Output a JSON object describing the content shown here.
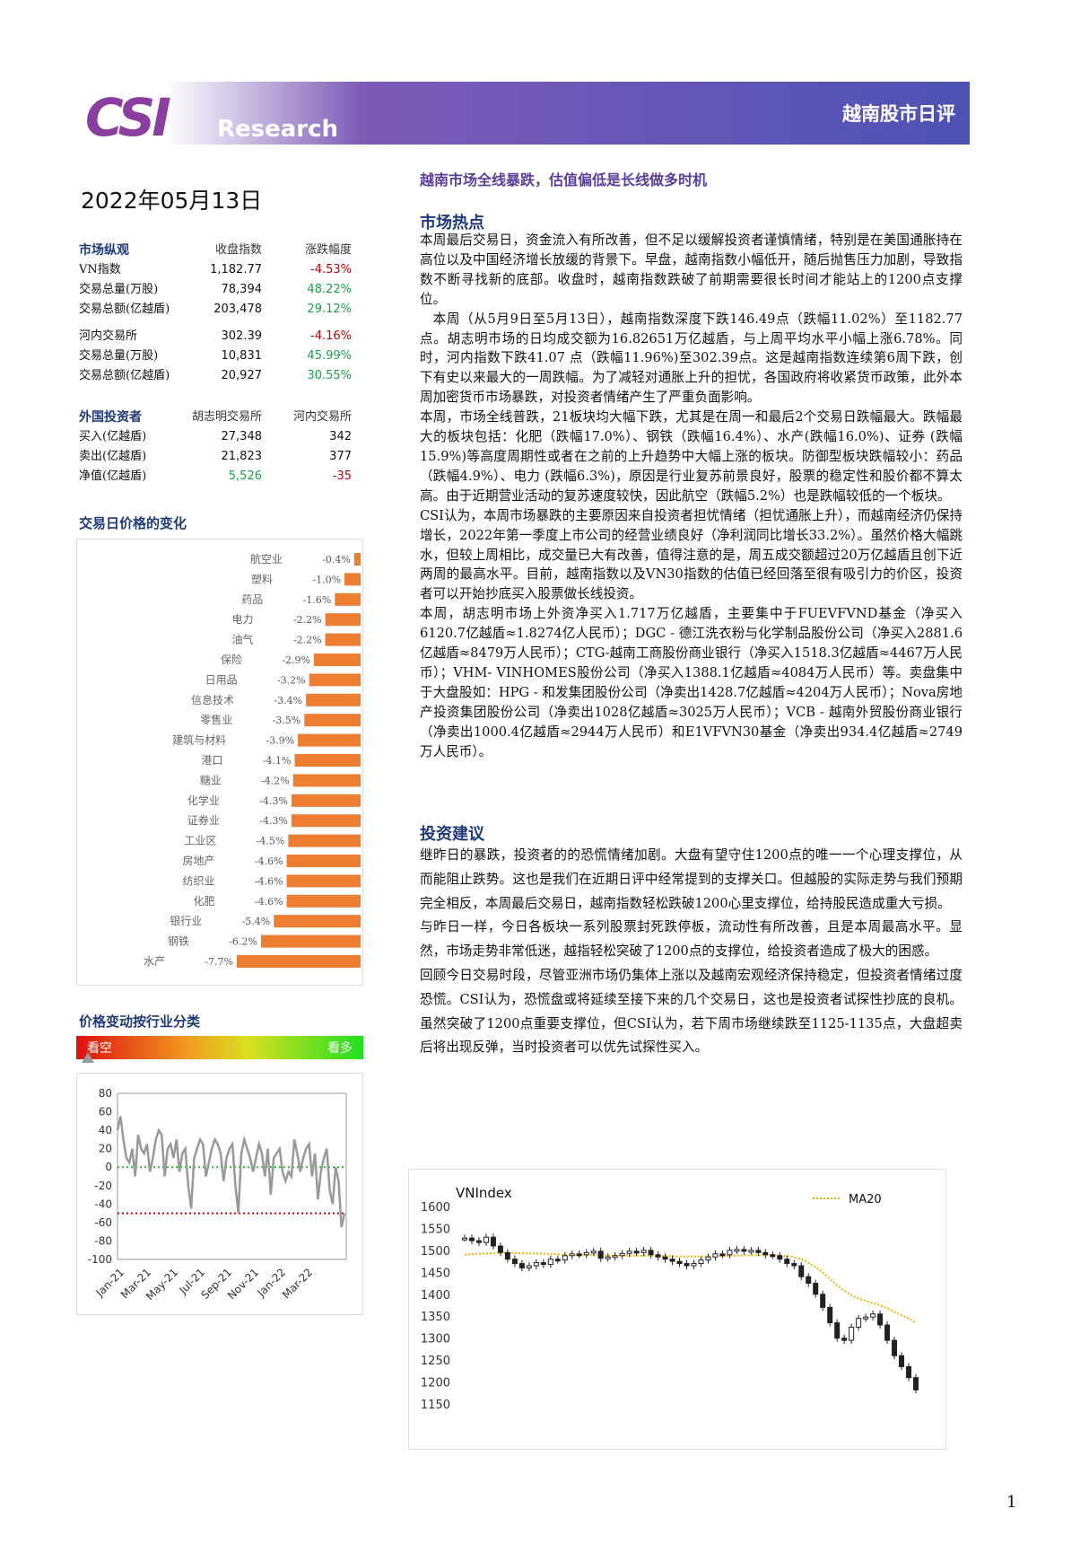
{
  "header": {
    "logo": "CSI",
    "logo_sub": "Research",
    "report_type": "越南股市日评"
  },
  "date": "2022年05月13日",
  "market_overview": {
    "title": "市场纵观",
    "col2": "收盘指数",
    "col3": "涨跌幅度",
    "hose_rows": [
      {
        "label": "VN指数",
        "value": "1,182.77",
        "change": "-4.53%",
        "dir": "down"
      },
      {
        "label": "交易总量(万股)",
        "value": "78,394",
        "change": "48.22%",
        "dir": "up"
      },
      {
        "label": "交易总额(亿越盾)",
        "value": "203,478",
        "change": "29.12%",
        "dir": "up"
      }
    ],
    "hnx_rows": [
      {
        "label": "河内交易所",
        "value": "302.39",
        "change": "-4.16%",
        "dir": "down"
      },
      {
        "label": "交易总量(万股)",
        "value": "10,831",
        "change": "45.99%",
        "dir": "up"
      },
      {
        "label": "交易总额(亿越盾)",
        "value": "20,927",
        "change": "30.55%",
        "dir": "up"
      }
    ]
  },
  "foreign_investors": {
    "title": "外国投资者",
    "col2": "胡志明交易所",
    "col3": "河内交易所",
    "rows": [
      {
        "label": "买入(亿越盾)",
        "v1": "27,348",
        "v2": "342",
        "color": "none"
      },
      {
        "label": "卖出(亿越盾)",
        "v1": "21,823",
        "v2": "377",
        "color": "none"
      },
      {
        "label": "净值(亿越盾)",
        "v1": "5,526",
        "v2": "-35",
        "color": "net"
      }
    ]
  },
  "sector_chart_title": "交易日价格的变化",
  "breadth_title": "价格变动按行业分类",
  "breadth_left": "看空",
  "breadth_right": "看多",
  "chart_data": [
    {
      "type": "bar",
      "categories": [
        "航空业",
        "塑料",
        "药品",
        "电力",
        "油气",
        "保险",
        "日用品",
        "信息技术",
        "零售业",
        "建筑与材料",
        "港口",
        "糖业",
        "化学业",
        "证券业",
        "工业区",
        "房地产",
        "纺织业",
        "化肥",
        "银行业",
        "钢铁",
        "水产"
      ],
      "values": [
        -0.4,
        -1.0,
        -1.6,
        -2.2,
        -2.2,
        -2.9,
        -3.2,
        -3.4,
        -3.5,
        -3.9,
        -4.1,
        -4.2,
        -4.3,
        -4.3,
        -4.5,
        -4.6,
        -4.6,
        -4.6,
        -5.4,
        -6.2,
        -7.7
      ],
      "value_labels": [
        "-0.4%",
        "-1.0%",
        "-1.6%",
        "-2.2%",
        "-2.2%",
        "-2.9%",
        "-3.2%",
        "-3.4%",
        "-3.5%",
        "-3.9%",
        "-4.1%",
        "-4.2%",
        "-4.3%",
        "-4.3%",
        "-4.5%",
        "-4.6%",
        "-4.6%",
        "-4.6%",
        "-5.4%",
        "-6.2%",
        "-7.7%"
      ],
      "color": "#ed7d31",
      "title": "",
      "ylim": [
        -7.7,
        0
      ]
    },
    {
      "type": "line",
      "title": "",
      "y_ticks": [
        "80",
        "60",
        "40",
        "20",
        "0",
        "-20",
        "-40",
        "-60",
        "-80",
        "-100"
      ],
      "ylim": [
        -100,
        80
      ],
      "x_ticks": [
        "Jan-21",
        "Mar-21",
        "May-21",
        "Jul-21",
        "Sep-21",
        "Nov-21",
        "Jan-22",
        "Mar-22"
      ],
      "ref_lines": [
        {
          "value": 0,
          "color": "#22c022",
          "style": "dotted"
        },
        {
          "value": -50,
          "color": "#c00000",
          "style": "dotted"
        }
      ],
      "series": [
        {
          "values": [
            40,
            55,
            30,
            10,
            5,
            20,
            -10,
            35,
            20,
            15,
            25,
            -5,
            10,
            30,
            40,
            35,
            -10,
            20,
            25,
            10,
            30,
            -5,
            15,
            20,
            -20,
            -45,
            10,
            20,
            30,
            25,
            -10,
            5,
            20,
            30,
            25,
            15,
            -15,
            10,
            20,
            25,
            -20,
            -50,
            15,
            30,
            20,
            10,
            -5,
            10,
            25,
            15,
            -10,
            20,
            -30,
            10,
            15,
            20,
            -5,
            -15,
            -5,
            -10,
            30,
            15,
            -5,
            10,
            20,
            25,
            -10,
            15,
            -35,
            -5,
            10,
            20,
            -25,
            -40,
            0,
            -15,
            -65,
            -50
          ]
        }
      ]
    },
    {
      "type": "line",
      "title": "",
      "y_ticks": [
        "1600",
        "1550",
        "1500",
        "1450",
        "1400",
        "1350",
        "1300",
        "1250",
        "1200",
        "1150"
      ],
      "ylim": [
        1150,
        1600
      ],
      "series": [
        {
          "name": "VNIndex",
          "values": [
            1528,
            1522,
            1518,
            1530,
            1510,
            1495,
            1480,
            1470,
            1460,
            1465,
            1472,
            1468,
            1480,
            1478,
            1488,
            1492,
            1490,
            1495,
            1498,
            1482,
            1485,
            1488,
            1493,
            1498,
            1495,
            1500,
            1490,
            1485,
            1480,
            1475,
            1470,
            1465,
            1470,
            1478,
            1485,
            1492,
            1490,
            1500,
            1502,
            1498,
            1500,
            1495,
            1490,
            1488,
            1480,
            1470,
            1465,
            1440,
            1425,
            1400,
            1370,
            1335,
            1300,
            1295,
            1325,
            1345,
            1348,
            1355,
            1330,
            1295,
            1260,
            1235,
            1210,
            1182
          ]
        },
        {
          "name": "MA20",
          "values": [
            1490,
            1491,
            1492,
            1493,
            1493,
            1494,
            1494,
            1494,
            1493,
            1493,
            1493,
            1492,
            1492,
            1491,
            1490,
            1490,
            1489,
            1489,
            1489,
            1489,
            1488,
            1488,
            1488,
            1488,
            1488,
            1488,
            1488,
            1488,
            1487,
            1487,
            1486,
            1486,
            1486,
            1486,
            1486,
            1487,
            1487,
            1488,
            1488,
            1489,
            1489,
            1489,
            1489,
            1489,
            1488,
            1487,
            1485,
            1480,
            1472,
            1462,
            1450,
            1435,
            1420,
            1408,
            1398,
            1390,
            1385,
            1380,
            1375,
            1368,
            1360,
            1352,
            1345,
            1335
          ]
        }
      ]
    }
  ],
  "article": {
    "title": "越南市场全线暴跌，估值偏低是长线做多时机",
    "hot_title": "市场热点",
    "hot_paragraphs": [
      "本周最后交易日，资金流入有所改善，但不足以缓解投资者谨慎情绪，特别是在美国通胀持在高位以及中国经济增长放缓的背景下。早盘，越南指数小幅低开，随后抛售压力加剧，导致指数不断寻找新的底部。收盘时，越南指数跌破了前期需要很长时间才能站上的1200点支撑位。",
      "本周（从5月9日至5月13日），越南指数深度下跌146.49点（跌幅11.02%）至1182.77点。胡志明市场的日均成交额为16.82651万亿越盾，与上周平均水平小幅上涨6.78%。同时，河内指数下跌41.07 点（跌幅11.96%)至302.39点。这是越南指数连续第6周下跌，创下有史以来最大的一周跌幅。为了减轻对通胀上升的担忧，各国政府将收紧货币政策，此外本周加密货币市场暴跌，对投资者情绪产生了严重负面影响。",
      "本周，市场全线普跌，21板块均大幅下跌，尤其是在周一和最后2个交易日跌幅最大。跌幅最大的板块包括：化肥（跌幅17.0%）、钢铁（跌幅16.4%）、水产(跌幅16.0%)、证券 (跌幅15.9%)等高度周期性或者在之前的上升趋势中大幅上涨的板块。防御型板块跌幅较小：药品（跌幅4.9%）、电力 (跌幅6.3%)，原因是行业复苏前景良好，股票的稳定性和股价都不算太高。由于近期营业活动的复苏速度较快，因此航空（跌幅5.2%）也是跌幅较低的一个板块。",
      "CSI认为，本周市场暴跌的主要原因来自投资者担忧情绪（担忧通胀上升），而越南经济仍保持增长，2022年第一季度上市公司的经营业绩良好（净利润同比增长33.2%）。虽然价格大幅跳水，但较上周相比，成交量已大有改善，值得注意的是，周五成交额超过20万亿越盾且创下近两周的最高水平。目前，越南指数以及VN30指数的估值已经回落至很有吸引力的价区，投资者可以开始抄底买入股票做长线投资。",
      "本周，胡志明市场上外资净买入1.717万亿越盾，主要集中于FUEVFVND基金（净买入6120.7亿越盾≈1.8274亿人民币）；DGC - 德江洗衣粉与化学制品股份公司（净买入2881.6亿越盾≈8479万人民币）；CTG-越南工商股份商业银行（净买入1518.3亿越盾≈4467万人民币）；VHM- VINHOMES股份公司（净买入1388.1亿越盾≈4084万人民币）等。卖盘集中于大盘股如：HPG - 和发集团股份公司（净卖出1428.7亿越盾≈4204万人民币）；Nova房地产投资集团股份公司（净卖出1028亿越盾≈3025万人民币）；VCB - 越南外贸股份商业银行（净卖出1000.4亿越盾≈2944万人民币）和E1VFVN30基金（净卖出934.4亿越盾≈2749万人民币）。"
    ],
    "advice_title": "投资建议",
    "advice_paragraphs": [
      "继昨日的暴跌，投资者的的恐慌情绪加剧。大盘有望守住1200点的唯一一个心理支撑位，从而能阻止跌势。这也是我们在近期日评中经常提到的支撑关口。但越股的实际走势与我们预期完全相反，本周最后交易日，越南指数轻松跌破1200心里支撑位，给持股民造成重大亏损。",
      "与昨日一样，今日各板块一系列股票封死跌停板，流动性有所改善，且是本周最高水平。显然，市场走势非常低迷，越指轻松突破了1200点的支撑位，给投资者造成了极大的困惑。",
      "回顾今日交易时段，尽管亚洲市场仍集体上涨以及越南宏观经济保持稳定，但投资者情绪过度恐慌。CSI认为，恐慌盘或将延续至接下来的几个交易日，这也是投资者试探性抄底的良机。虽然突破了1200点重要支撑位，但CSI认为，若下周市场继续跌至1125-1135点，大盘超卖后将出现反弹，当时投资者可以优先试探性买入。"
    ]
  },
  "page_number": "1"
}
